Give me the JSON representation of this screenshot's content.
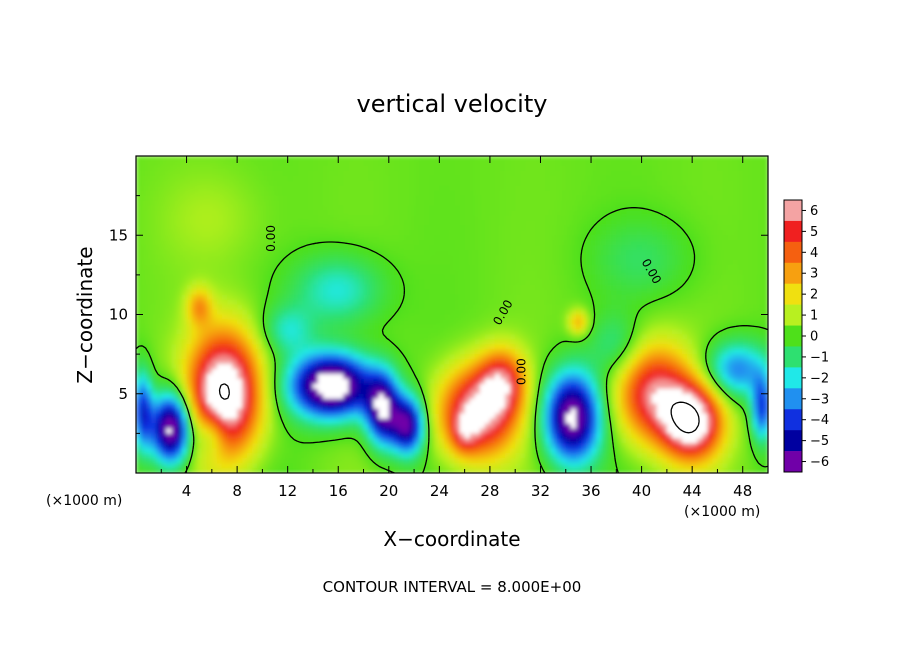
{
  "chart_data": {
    "type": "heatmap",
    "title": "vertical velocity",
    "xlabel": "X−coordinate",
    "ylabel": "Z−coordinate",
    "x_unit_left": "(×1000 m)",
    "x_unit_right": "(×1000 m)",
    "xlim": [
      0,
      50
    ],
    "ylim": [
      0,
      20
    ],
    "xticks": [
      4,
      8,
      12,
      16,
      20,
      24,
      28,
      32,
      36,
      40,
      44,
      48
    ],
    "yticks": [
      5,
      10,
      15
    ],
    "colorbar": {
      "ticks": [
        "6",
        "5",
        "4",
        "3",
        "2",
        "1",
        "0",
        "−1",
        "−2",
        "−3",
        "−4",
        "−5",
        "−6"
      ],
      "colors": [
        "#f4a3a3",
        "#f02020",
        "#f56010",
        "#f7a010",
        "#f0e010",
        "#b8f020",
        "#4ee01a",
        "#2ee070",
        "#20e8e8",
        "#2090f0",
        "#1030e0",
        "#0000a0",
        "#7000a8"
      ]
    },
    "contour_label": "0.00",
    "footer": "CONTOUR INTERVAL = 8.000E+00",
    "features": [
      {
        "x": 2.8,
        "z": 2.8,
        "w": -7.5,
        "rx": 1.6,
        "rz": 2.2
      },
      {
        "x": 7.0,
        "z": 5.0,
        "w": 8.0,
        "rx": 2.8,
        "rz": 3.8
      },
      {
        "x": 6.0,
        "z": 2.5,
        "w": -2.5,
        "rx": 1.2,
        "rz": 1.5
      },
      {
        "x": 5.0,
        "z": 10.5,
        "w": 2.5,
        "rx": 1.0,
        "rz": 1.2
      },
      {
        "x": 15.5,
        "z": 5.5,
        "w": -8.0,
        "rx": 3.2,
        "rz": 2.0
      },
      {
        "x": 19.5,
        "z": 4.0,
        "w": -6.0,
        "rx": 1.3,
        "rz": 2.2
      },
      {
        "x": 21.5,
        "z": 3.0,
        "w": -6.0,
        "rx": 1.3,
        "rz": 1.8
      },
      {
        "x": 16.0,
        "z": 11.5,
        "w": -2.2,
        "rx": 3.5,
        "rz": 2.2
      },
      {
        "x": 12.0,
        "z": 9.0,
        "w": -1.8,
        "rx": 2.0,
        "rz": 1.5
      },
      {
        "x": 27.0,
        "z": 3.8,
        "w": 6.5,
        "rx": 3.0,
        "rz": 2.8
      },
      {
        "x": 29.0,
        "z": 5.8,
        "w": 4.0,
        "rx": 1.8,
        "rz": 2.0
      },
      {
        "x": 26.0,
        "z": 2.5,
        "w": 2.0,
        "rx": 1.0,
        "rz": 1.2
      },
      {
        "x": 34.5,
        "z": 3.5,
        "w": -7.0,
        "rx": 2.2,
        "rz": 2.8
      },
      {
        "x": 35.0,
        "z": 9.5,
        "w": 2.5,
        "rx": 0.8,
        "rz": 0.8
      },
      {
        "x": 38.0,
        "z": 8.0,
        "w": -1.5,
        "rx": 2.0,
        "rz": 2.0
      },
      {
        "x": 41.0,
        "z": 5.0,
        "w": 5.5,
        "rx": 3.0,
        "rz": 3.0
      },
      {
        "x": 44.0,
        "z": 3.2,
        "w": 7.0,
        "rx": 2.3,
        "rz": 2.3
      },
      {
        "x": 47.5,
        "z": 6.5,
        "w": -3.5,
        "rx": 2.5,
        "rz": 1.8
      },
      {
        "x": 0.5,
        "z": 4.0,
        "w": -4.0,
        "rx": 0.8,
        "rz": 2.5
      },
      {
        "x": 49.5,
        "z": 4.0,
        "w": -4.0,
        "rx": 0.8,
        "rz": 2.0
      },
      {
        "x": 40.0,
        "z": 13.5,
        "w": -1.0,
        "rx": 4.0,
        "rz": 2.5
      },
      {
        "x": 6.0,
        "z": 16.0,
        "w": 0.6,
        "rx": 4.0,
        "rz": 3.0
      }
    ]
  }
}
